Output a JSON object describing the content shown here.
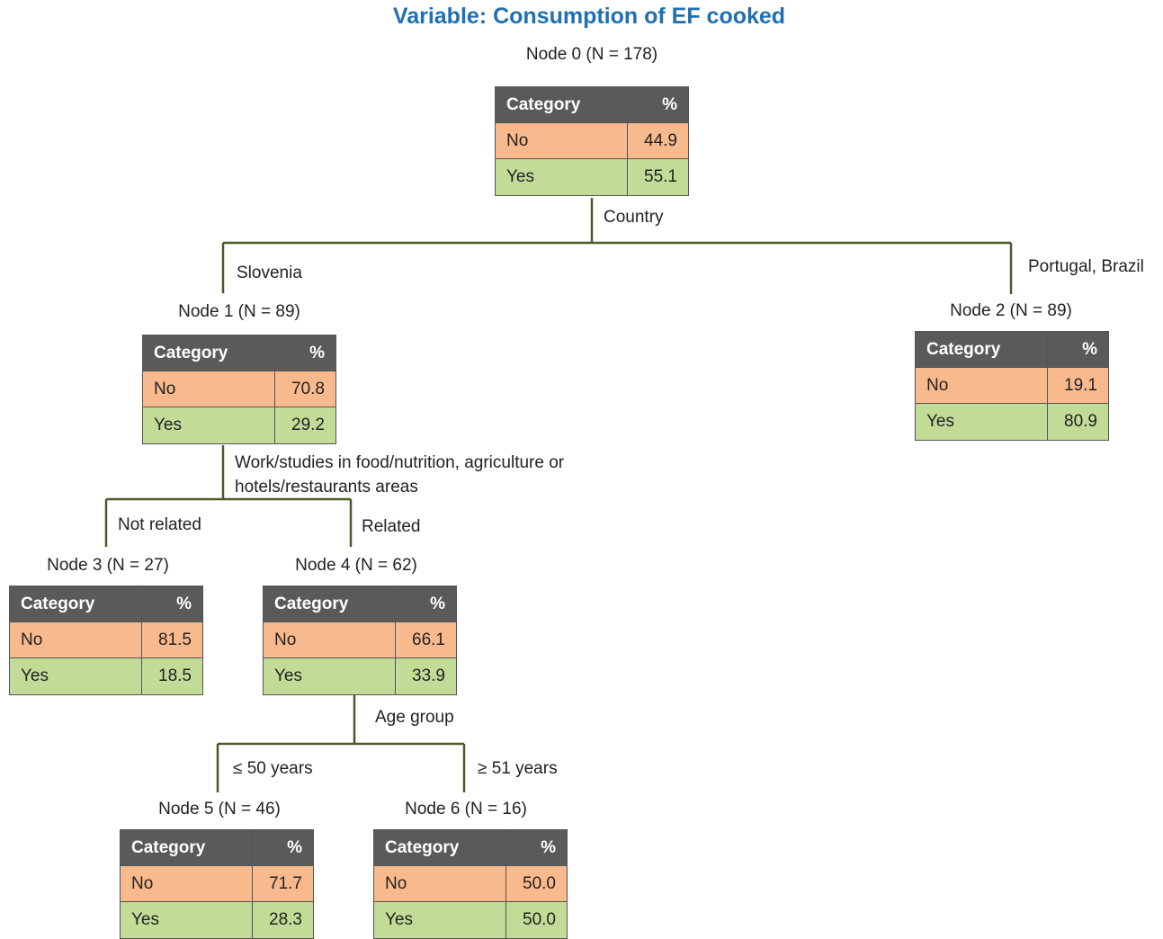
{
  "title": "Variable: Consumption  of EF cooked",
  "header": {
    "category": "Category",
    "percent": "%"
  },
  "nodes": [
    {
      "label": "Node 0 (N = 178)",
      "no_label": "No",
      "no": "44.9",
      "yes_label": "Yes",
      "yes": "55.1"
    },
    {
      "label": "Node 1 (N = 89)",
      "no_label": "No",
      "no": "70.8",
      "yes_label": "Yes",
      "yes": "29.2"
    },
    {
      "label": "Node 2 (N = 89)",
      "no_label": "No",
      "no": "19.1",
      "yes_label": "Yes",
      "yes": "80.9"
    },
    {
      "label": "Node 3 (N = 27)",
      "no_label": "No",
      "no": "81.5",
      "yes_label": "Yes",
      "yes": "18.5"
    },
    {
      "label": "Node 4 (N = 62)",
      "no_label": "No",
      "no": "66.1",
      "yes_label": "Yes",
      "yes": "33.9"
    },
    {
      "label": "Node 5 (N = 46)",
      "no_label": "No",
      "no": "71.7",
      "yes_label": "Yes",
      "yes": "28.3"
    },
    {
      "label": "Node 6 (N = 16)",
      "no_label": "No",
      "no": "50.0",
      "yes_label": "Yes",
      "yes": "50.0"
    }
  ],
  "splits": {
    "country": "Country",
    "slovenia": "Slovenia",
    "portugal_brazil": "Portugal, Brazil",
    "work_line1": "Work/studies in food/nutrition,  agriculture or",
    "work_line2": "hotels/restaurants areas",
    "not_related": "Not related",
    "related": "Related",
    "age_group": "Age group",
    "le50": "≤ 50 years",
    "ge51": "≥ 51 years"
  },
  "colors": {
    "title": "#1f6fb2",
    "header_bg": "#5a5a5a",
    "no_bg": "#f8b98d",
    "yes_bg": "#c2dc98",
    "edge": "#4a5a2a"
  }
}
